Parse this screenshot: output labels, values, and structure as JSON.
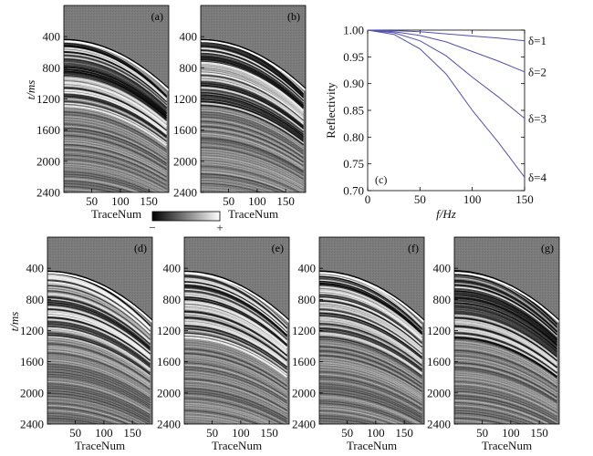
{
  "seismic_panels": {
    "y_axis_label": "t/ms",
    "x_axis_label": "TraceNum",
    "y_ticks": [
      400,
      800,
      1200,
      1600,
      2000,
      2400
    ],
    "x_ticks": [
      50,
      100,
      150
    ],
    "t_range": [
      0,
      2400
    ],
    "trace_range": [
      1,
      185
    ],
    "panels": [
      {
        "id": "a",
        "label": "(a)"
      },
      {
        "id": "b",
        "label": "(b)"
      },
      {
        "id": "d",
        "label": "(d)"
      },
      {
        "id": "e",
        "label": "(e)"
      },
      {
        "id": "f",
        "label": "(f)"
      },
      {
        "id": "g",
        "label": "(g)"
      }
    ]
  },
  "colorbar": {
    "min_label": "−",
    "max_label": "+",
    "colors": [
      "#000000",
      "#ffffff"
    ]
  },
  "chart_data": {
    "type": "line",
    "panel_label": "(c)",
    "xlabel": "f/Hz",
    "ylabel": "Reflectivity",
    "xlim": [
      0,
      150
    ],
    "ylim": [
      0.7,
      1.0
    ],
    "x_ticks": [
      0,
      50,
      100,
      150
    ],
    "y_ticks": [
      0.7,
      0.75,
      0.8,
      0.85,
      0.9,
      0.95,
      1.0
    ],
    "line_color": "#5050b0",
    "series": [
      {
        "name": "δ=1",
        "x": [
          0,
          25,
          50,
          75,
          100,
          125,
          150
        ],
        "y": [
          1.0,
          0.999,
          0.997,
          0.993,
          0.989,
          0.985,
          0.98
        ]
      },
      {
        "name": "δ=2",
        "x": [
          0,
          25,
          50,
          75,
          100,
          125,
          150
        ],
        "y": [
          1.0,
          0.997,
          0.99,
          0.978,
          0.96,
          0.942,
          0.922
        ]
      },
      {
        "name": "δ=3",
        "x": [
          0,
          25,
          50,
          75,
          100,
          125,
          150
        ],
        "y": [
          1.0,
          0.995,
          0.98,
          0.952,
          0.912,
          0.875,
          0.835
        ]
      },
      {
        "name": "δ=4",
        "x": [
          0,
          25,
          50,
          75,
          100,
          125,
          150
        ],
        "y": [
          1.0,
          0.992,
          0.965,
          0.918,
          0.85,
          0.79,
          0.725
        ]
      }
    ]
  }
}
